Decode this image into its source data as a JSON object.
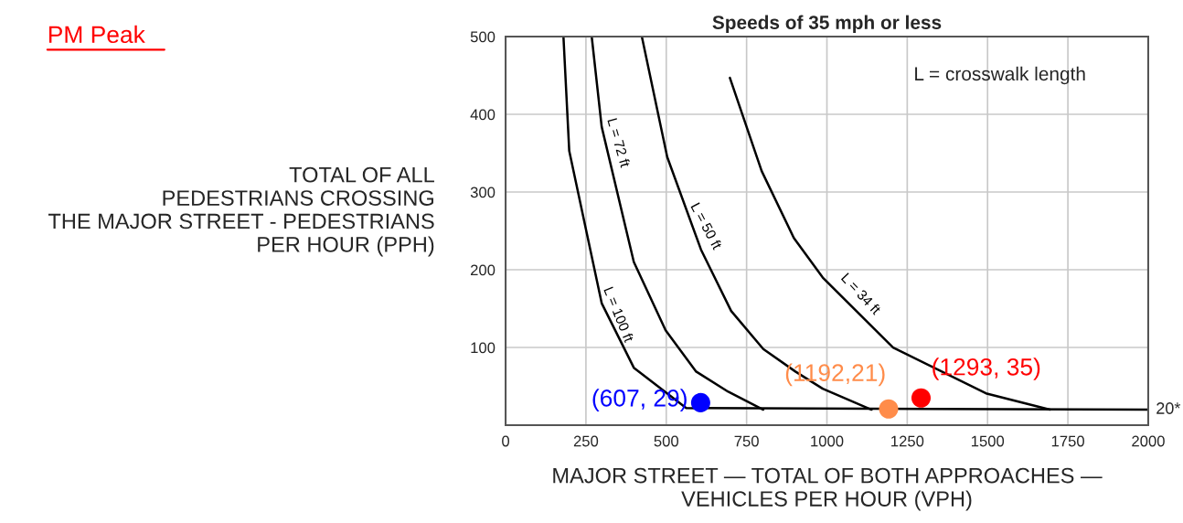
{
  "chart_data": {
    "type": "line",
    "title": "Speeds of 35 mph or less",
    "xlabel": "MAJOR STREET — TOTAL OF BOTH APPROACHES —\nVEHICLES PER HOUR (VPH)",
    "ylabel": "TOTAL OF ALL\nPEDESTRIANS CROSSING\nTHE MAJOR STREET - PEDESTRIANS\nPER HOUR (PPH)",
    "series": [
      {
        "name": "L = 100 ft",
        "color": "#000000",
        "x": [
          180,
          198,
          299,
          399,
          562,
          2000
        ],
        "values": [
          500,
          353,
          157,
          74,
          22,
          20
        ]
      },
      {
        "name": "L = 72 ft",
        "color": "#000000",
        "x": [
          268,
          299,
          399,
          498,
          593,
          693,
          802
        ],
        "values": [
          500,
          384,
          210,
          122,
          69,
          43,
          20
        ]
      },
      {
        "name": "L = 50 ft",
        "color": "#000000",
        "x": [
          424,
          503,
          608,
          702,
          802,
          902,
          987,
          1139
        ],
        "values": [
          500,
          345,
          226,
          147,
          98,
          69,
          47,
          20
        ]
      },
      {
        "name": "L = 34 ft",
        "color": "#000000",
        "x": [
          698,
          797,
          897,
          987,
          1206,
          1495,
          1694
        ],
        "values": [
          447,
          327,
          241,
          190,
          100,
          41,
          20
        ]
      },
      {
        "type": "scatter",
        "marker": "circle",
        "x": [
          607,
          1192,
          1293
        ],
        "values": [
          29,
          21,
          35
        ],
        "colors": [
          "#0000ff",
          "#ff8c4a",
          "#ff0000"
        ]
      }
    ],
    "annotations": [
      "PM Peak",
      "L = crosswalk length",
      {
        "text": "(607, 29)",
        "x": 607,
        "y": 29
      },
      {
        "text": "(1192,21)",
        "x": 1192,
        "y": 21
      },
      {
        "text": "(1293, 35)",
        "x": 1293,
        "y": 35
      },
      {
        "text": "20*",
        "x": 2000,
        "y": 20
      }
    ],
    "xlim": [
      0,
      2000
    ],
    "ylim": [
      0,
      500
    ],
    "xticks": [
      0,
      250,
      500,
      750,
      1000,
      1250,
      1500,
      1750,
      2000
    ],
    "yticks": [
      100,
      200,
      300,
      400,
      500
    ],
    "grid": true,
    "line_style": "solid"
  }
}
